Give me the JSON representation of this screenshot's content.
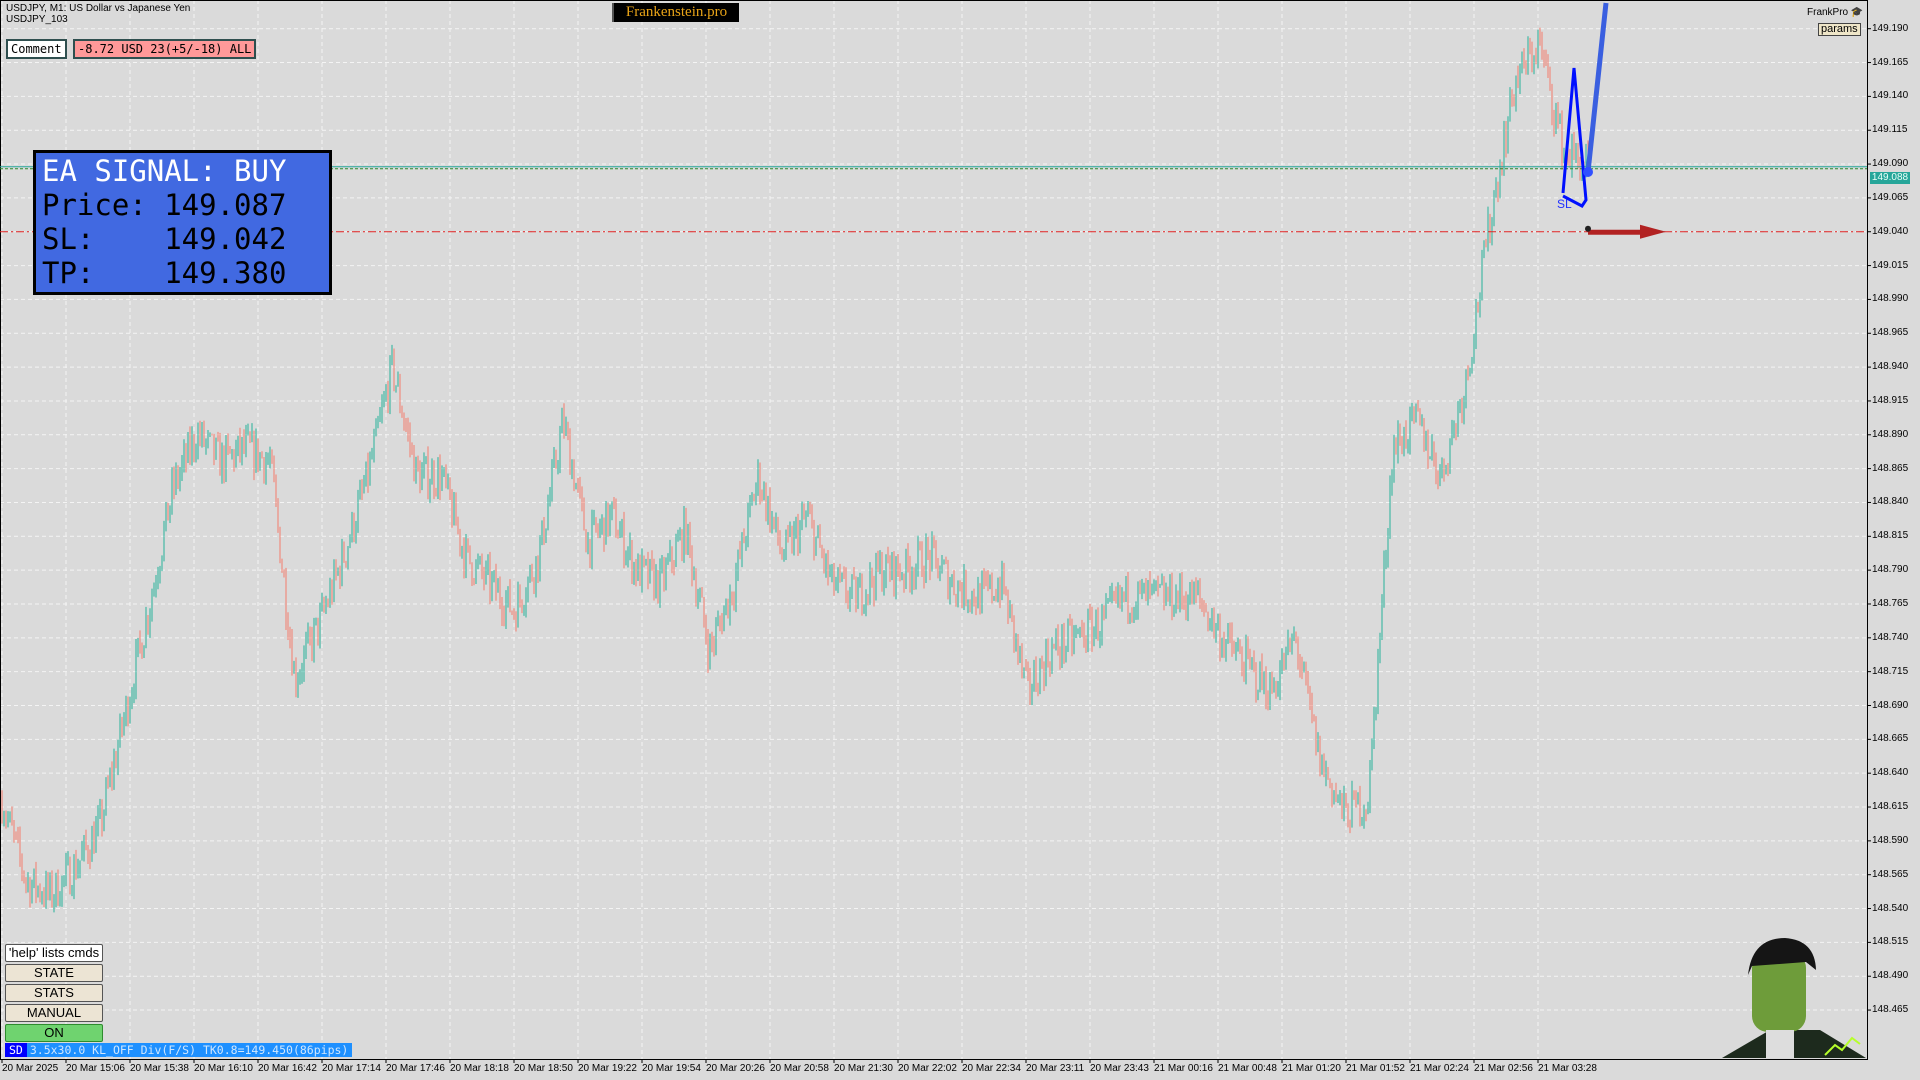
{
  "header": {
    "symbol_line": "USDJPY, M1:  US Dollar vs Japanese Yen",
    "sub_line": "USDJPY_103",
    "brand": "Frankenstein.pro",
    "comment_label": "Comment",
    "pl_summary": "-8.72 USD 23(+5/-18) ALL",
    "frankpro_label": "FrankPro",
    "params_button": "params"
  },
  "signal_panel": {
    "title": "EA SIGNAL: BUY",
    "price_line": "Price: 149.087",
    "sl_line": "SL:    149.042",
    "tp_line": "TP:    149.380"
  },
  "controls": {
    "help": "'help' lists cmds",
    "state": "STATE",
    "stats": "STATS",
    "manual": "MANUAL",
    "on": "ON"
  },
  "status_bar": {
    "tag": "SD",
    "text": "3.5x30.0 KL_OFF Div(F/S) TK0.8=149.450(86pips)"
  },
  "chart_data": {
    "type": "bar",
    "symbol": "USDJPY",
    "timeframe": "M1",
    "current_price": "149.088",
    "sl_level": 149.04,
    "sl_label": "SL",
    "price_axis": [
      "149.190",
      "149.165",
      "149.140",
      "149.115",
      "149.090",
      "149.065",
      "149.040",
      "149.015",
      "148.990",
      "148.965",
      "148.940",
      "148.915",
      "148.890",
      "148.865",
      "148.840",
      "148.815",
      "148.790",
      "148.765",
      "148.740",
      "148.715",
      "148.690",
      "148.665",
      "148.640",
      "148.615",
      "148.590",
      "148.565",
      "148.540",
      "148.515",
      "148.490",
      "148.465"
    ],
    "time_axis": [
      "20 Mar 2025",
      "20 Mar 15:06",
      "20 Mar 15:38",
      "20 Mar 16:10",
      "20 Mar 16:42",
      "20 Mar 17:14",
      "20 Mar 17:46",
      "20 Mar 18:18",
      "20 Mar 18:50",
      "20 Mar 19:22",
      "20 Mar 19:54",
      "20 Mar 20:26",
      "20 Mar 20:58",
      "20 Mar 21:30",
      "20 Mar 22:02",
      "20 Mar 22:34",
      "20 Mar 23:11",
      "20 Mar 23:43",
      "21 Mar 00:16",
      "21 Mar 00:48",
      "21 Mar 01:20",
      "21 Mar 01:52",
      "21 Mar 02:24",
      "21 Mar 02:56",
      "21 Mar 03:28"
    ],
    "ylim": [
      148.44,
      149.2
    ],
    "price_path": [
      148.62,
      148.56,
      148.55,
      148.57,
      148.6,
      148.68,
      148.76,
      148.85,
      148.89,
      148.87,
      148.88,
      148.87,
      148.71,
      148.75,
      148.8,
      148.86,
      148.94,
      148.86,
      148.86,
      148.8,
      148.78,
      148.76,
      148.8,
      148.9,
      148.81,
      148.83,
      148.79,
      148.78,
      148.82,
      148.73,
      148.78,
      148.86,
      148.8,
      148.83,
      148.78,
      148.77,
      148.79,
      148.79,
      148.8,
      148.78,
      148.77,
      148.78,
      148.7,
      148.73,
      148.74,
      148.75,
      148.77,
      148.77,
      148.77,
      148.77,
      148.74,
      148.72,
      148.7,
      148.74,
      148.65,
      148.61,
      148.62,
      148.88,
      148.9,
      148.86,
      148.93,
      149.05,
      149.15,
      149.18,
      149.1,
      149.088
    ],
    "colors": {
      "up": "#26b29a",
      "down": "#f47c6c",
      "bid_line": "#26a69a",
      "sl_line": "#e02020",
      "trend": "#3a5fe0",
      "grid": "#f4f4f4"
    }
  }
}
